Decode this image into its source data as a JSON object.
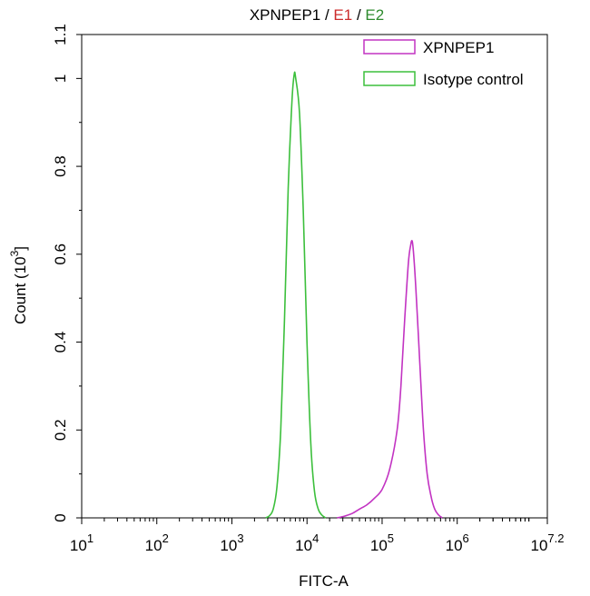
{
  "chart_data": {
    "type": "line",
    "title": {
      "parts": [
        {
          "text": "XPNPEP1",
          "color": "#000000"
        },
        {
          "text": " / ",
          "color": "#000000"
        },
        {
          "text": "E1",
          "color": "#cc2b2b"
        },
        {
          "text": " / ",
          "color": "#000000"
        },
        {
          "text": "E2",
          "color": "#2e8b2e"
        }
      ]
    },
    "xlabel": "FITC-A",
    "ylabel": "Count (10³)",
    "x_scale": "log10",
    "xlim": [
      10,
      15848932
    ],
    "ylim": [
      0,
      1.1
    ],
    "x_ticks": [
      {
        "value": 10,
        "base": "10",
        "exp": "1"
      },
      {
        "value": 100,
        "base": "10",
        "exp": "2"
      },
      {
        "value": 1000,
        "base": "10",
        "exp": "3"
      },
      {
        "value": 10000,
        "base": "10",
        "exp": "4"
      },
      {
        "value": 100000,
        "base": "10",
        "exp": "5"
      },
      {
        "value": 1000000,
        "base": "10",
        "exp": "6"
      },
      {
        "value": 15848932,
        "base": "10",
        "exp": "7.2"
      }
    ],
    "y_ticks": [
      {
        "value": 0,
        "label": "0"
      },
      {
        "value": 0.2,
        "label": "0.2"
      },
      {
        "value": 0.4,
        "label": "0.4"
      },
      {
        "value": 0.6,
        "label": "0.6"
      },
      {
        "value": 0.8,
        "label": "0.8"
      },
      {
        "value": 1.0,
        "label": "1"
      },
      {
        "value": 1.1,
        "label": "1.1"
      }
    ],
    "legend_position": "top-right",
    "series": [
      {
        "name": "XPNPEP1",
        "color": "#c233c2",
        "points": [
          [
            25119,
            0.0
          ],
          [
            31623,
            0.004
          ],
          [
            39811,
            0.01
          ],
          [
            50119,
            0.02
          ],
          [
            63096,
            0.03
          ],
          [
            79433,
            0.045
          ],
          [
            100000,
            0.065
          ],
          [
            125893,
            0.11
          ],
          [
            158489,
            0.2
          ],
          [
            177828,
            0.3
          ],
          [
            199526,
            0.45
          ],
          [
            223872,
            0.58
          ],
          [
            239883,
            0.62
          ],
          [
            251189,
            0.63
          ],
          [
            263027,
            0.6
          ],
          [
            281838,
            0.52
          ],
          [
            316228,
            0.36
          ],
          [
            354813,
            0.2
          ],
          [
            398107,
            0.1
          ],
          [
            446684,
            0.05
          ],
          [
            501187,
            0.02
          ],
          [
            562341,
            0.007
          ],
          [
            630957,
            0.0
          ]
        ]
      },
      {
        "name": "Isotype control",
        "color": "#3cbf3c",
        "points": [
          [
            2818,
            0.0
          ],
          [
            3162,
            0.005
          ],
          [
            3548,
            0.02
          ],
          [
            3981,
            0.07
          ],
          [
            4467,
            0.2
          ],
          [
            5012,
            0.45
          ],
          [
            5623,
            0.75
          ],
          [
            6310,
            0.95
          ],
          [
            6761,
            1.01
          ],
          [
            7079,
            1.0
          ],
          [
            7943,
            0.92
          ],
          [
            8913,
            0.7
          ],
          [
            10000,
            0.4
          ],
          [
            11220,
            0.17
          ],
          [
            12589,
            0.06
          ],
          [
            14125,
            0.02
          ],
          [
            15849,
            0.006
          ],
          [
            17783,
            0.0
          ]
        ]
      }
    ]
  }
}
